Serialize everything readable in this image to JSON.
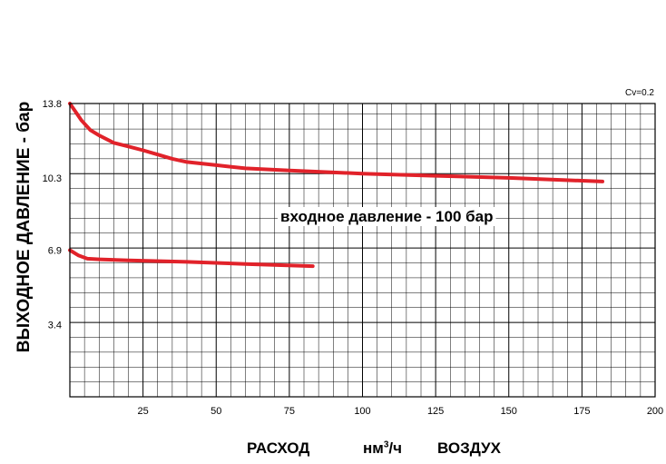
{
  "chart_data": {
    "type": "line",
    "ylabel": "ВЫХОДНОЕ ДАВЛЕНИЕ - бар",
    "xlabel": {
      "quantity": "РАСХОД",
      "unit": "нм",
      "unit_sup": "3",
      "unit_tail": "/ч",
      "medium": "ВОЗДУХ"
    },
    "corner_label": "Cv=0.2",
    "annotation": "входное давление - 100 бар",
    "xlim": [
      0,
      200
    ],
    "ylim": [
      0,
      13.8
    ],
    "x_ticks": [
      25,
      50,
      75,
      100,
      125,
      150,
      175,
      200
    ],
    "y_ticks": [
      3.4,
      6.9,
      10.3,
      13.8
    ],
    "grid": true,
    "line_color": "#e1222a",
    "series": [
      {
        "x": [
          0,
          2,
          4,
          7,
          10,
          15,
          20,
          25,
          30,
          35,
          40,
          50,
          60,
          75,
          100,
          125,
          150,
          182
        ],
        "y": [
          13.8,
          13.4,
          13.0,
          12.55,
          12.3,
          11.95,
          11.78,
          11.6,
          11.4,
          11.2,
          11.05,
          10.9,
          10.75,
          10.65,
          10.5,
          10.4,
          10.3,
          10.13
        ]
      },
      {
        "x": [
          0,
          3,
          6,
          10,
          20,
          40,
          60,
          83
        ],
        "y": [
          6.9,
          6.65,
          6.5,
          6.47,
          6.42,
          6.35,
          6.25,
          6.15
        ]
      }
    ]
  }
}
